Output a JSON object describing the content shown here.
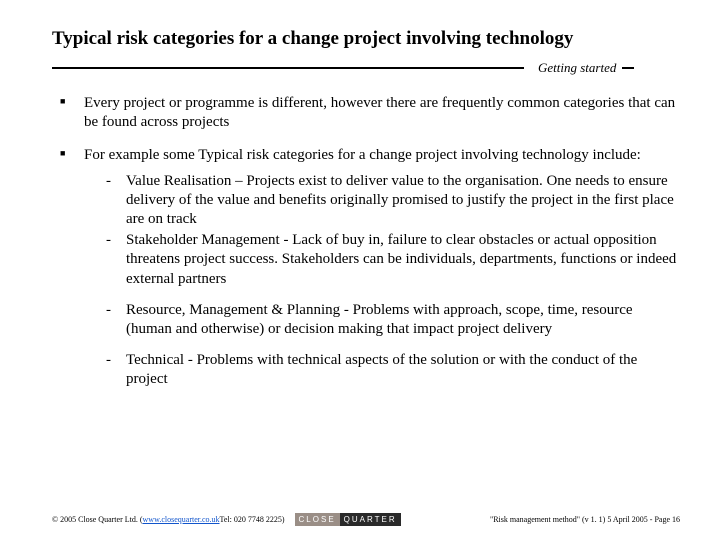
{
  "title": "Typical risk categories for a change project involving technology",
  "section_label": "Getting started",
  "bullets": [
    {
      "text": "Every project or programme is different, however there are frequently common categories that can be found across projects",
      "subs_a": [],
      "subs_b": []
    },
    {
      "text": "For example some Typical risk categories for a change project involving technology include:",
      "subs_a": [
        "Value Realisation – Projects exist to deliver value to the organisation. One needs to ensure delivery of the value and benefits originally promised to justify the project in the first place are on track",
        "Stakeholder Management - Lack of buy in, failure to clear obstacles or actual opposition threatens project success. Stakeholders can be individuals, departments, functions or indeed external partners"
      ],
      "subs_b": [
        "Resource, Management & Planning - Problems with approach, scope, time, resource (human and otherwise) or decision making that impact project delivery",
        "Technical - Problems with technical aspects of the solution or with the conduct of the project"
      ]
    }
  ],
  "footer": {
    "copyright_prefix": "© 2005 Close Quarter Ltd. (",
    "link_text": "www.closequarter.co.uk",
    "copyright_suffix": " Tel: 020 7748 2225)",
    "logo_left": "CLOSE",
    "logo_right": "QUARTER",
    "right": "\"Risk management method\" (v 1. 1) 5 April 2005 - Page  16"
  }
}
